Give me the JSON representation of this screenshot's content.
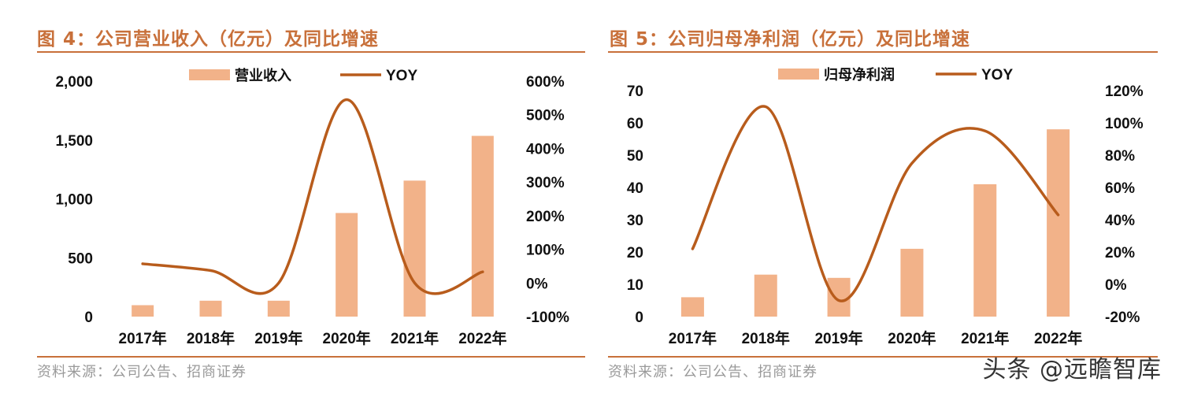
{
  "colors": {
    "accent": "#c8703a",
    "bar": "#f2b289",
    "line": "#b85c1c",
    "source": "#9a9a9a"
  },
  "watermark": "头条 @远瞻智库",
  "panels": [
    {
      "title": "图 4：公司营业收入（亿元）及同比增速",
      "source": "资料来源：公司公告、招商证券",
      "chart_data": {
        "type": "bar",
        "categories": [
          "2017年",
          "2018年",
          "2019年",
          "2020年",
          "2021年",
          "2022年"
        ],
        "series": [
          {
            "name": "营业收入",
            "type": "bar",
            "axis": "left",
            "values": [
              97,
              135,
              135,
              880,
              1155,
              1535
            ]
          },
          {
            "name": "YOY",
            "type": "line",
            "axis": "right",
            "values": [
              0.57,
              0.37,
              0.0,
              5.45,
              0.0,
              0.33
            ]
          }
        ],
        "left_axis": {
          "min": 0,
          "max": 2000,
          "ticks": [
            "0",
            "500",
            "1,000",
            "1,500",
            "2,000"
          ]
        },
        "right_axis": {
          "min": -1,
          "max": 6,
          "ticks": [
            "-100%",
            "0%",
            "100%",
            "200%",
            "300%",
            "400%",
            "500%",
            "600%"
          ]
        },
        "legend_position": "top-center",
        "grid": false
      }
    },
    {
      "title": "图 5：公司归母净利润（亿元）及同比增速",
      "source": "资料来源：公司公告、招商证券",
      "chart_data": {
        "type": "bar",
        "categories": [
          "2017年",
          "2018年",
          "2019年",
          "2020年",
          "2021年",
          "2022年"
        ],
        "series": [
          {
            "name": "归母净利润",
            "type": "bar",
            "axis": "left",
            "values": [
              6,
              13,
              12,
              21,
              41,
              58
            ]
          },
          {
            "name": "YOY",
            "type": "line",
            "axis": "right",
            "values": [
              0.22,
              1.1,
              -0.1,
              0.75,
              0.95,
              0.43
            ]
          }
        ],
        "left_axis": {
          "min": 0,
          "max": 70,
          "ticks": [
            "0",
            "10",
            "20",
            "30",
            "40",
            "50",
            "60",
            "70"
          ]
        },
        "right_axis": {
          "min": -0.2,
          "max": 1.2,
          "ticks": [
            "-20%",
            "0%",
            "20%",
            "40%",
            "60%",
            "80%",
            "100%",
            "120%"
          ]
        },
        "legend_position": "top-center",
        "grid": false
      }
    }
  ]
}
